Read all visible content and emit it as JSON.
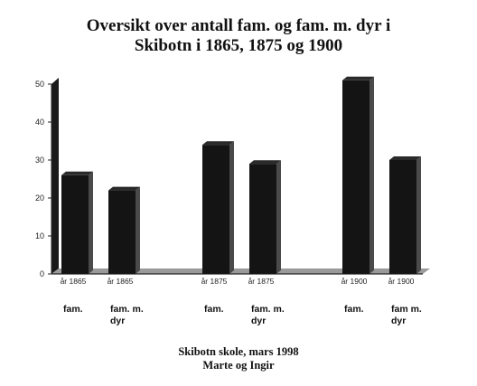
{
  "chart_data": {
    "type": "bar",
    "title_line1": "Oversikt over antall fam. og fam. m. dyr i",
    "title_line2": "Skibotn i 1865, 1875 og 1900",
    "ylim": [
      0,
      50
    ],
    "yticks": [
      "0",
      "10",
      "20",
      "30",
      "40",
      "50"
    ],
    "bars": [
      {
        "tick": "år 1865",
        "label": "fam.",
        "value": 26
      },
      {
        "tick": "år 1865",
        "label": "fam. m. dyr",
        "value": 22
      },
      {
        "tick": "år 1875",
        "label": "fam.",
        "value": 34
      },
      {
        "tick": "år 1875",
        "label": "fam. m. dyr",
        "value": 29
      },
      {
        "tick": "år 1900",
        "label": "fam.",
        "value": 51
      },
      {
        "tick": "år 1900",
        "label": "fam m. dyr",
        "value": 30
      }
    ],
    "grid": false,
    "legend": "none"
  },
  "footer": {
    "line1": "Skibotn skole, mars 1998",
    "line2": "Marte og Ingir"
  },
  "colors": {
    "bar": "#141414",
    "bar_side": "#4a4a4a",
    "bar_top": "#2a2a2a",
    "floor": "#9a9a9a",
    "wall": "#1a1a1a"
  }
}
